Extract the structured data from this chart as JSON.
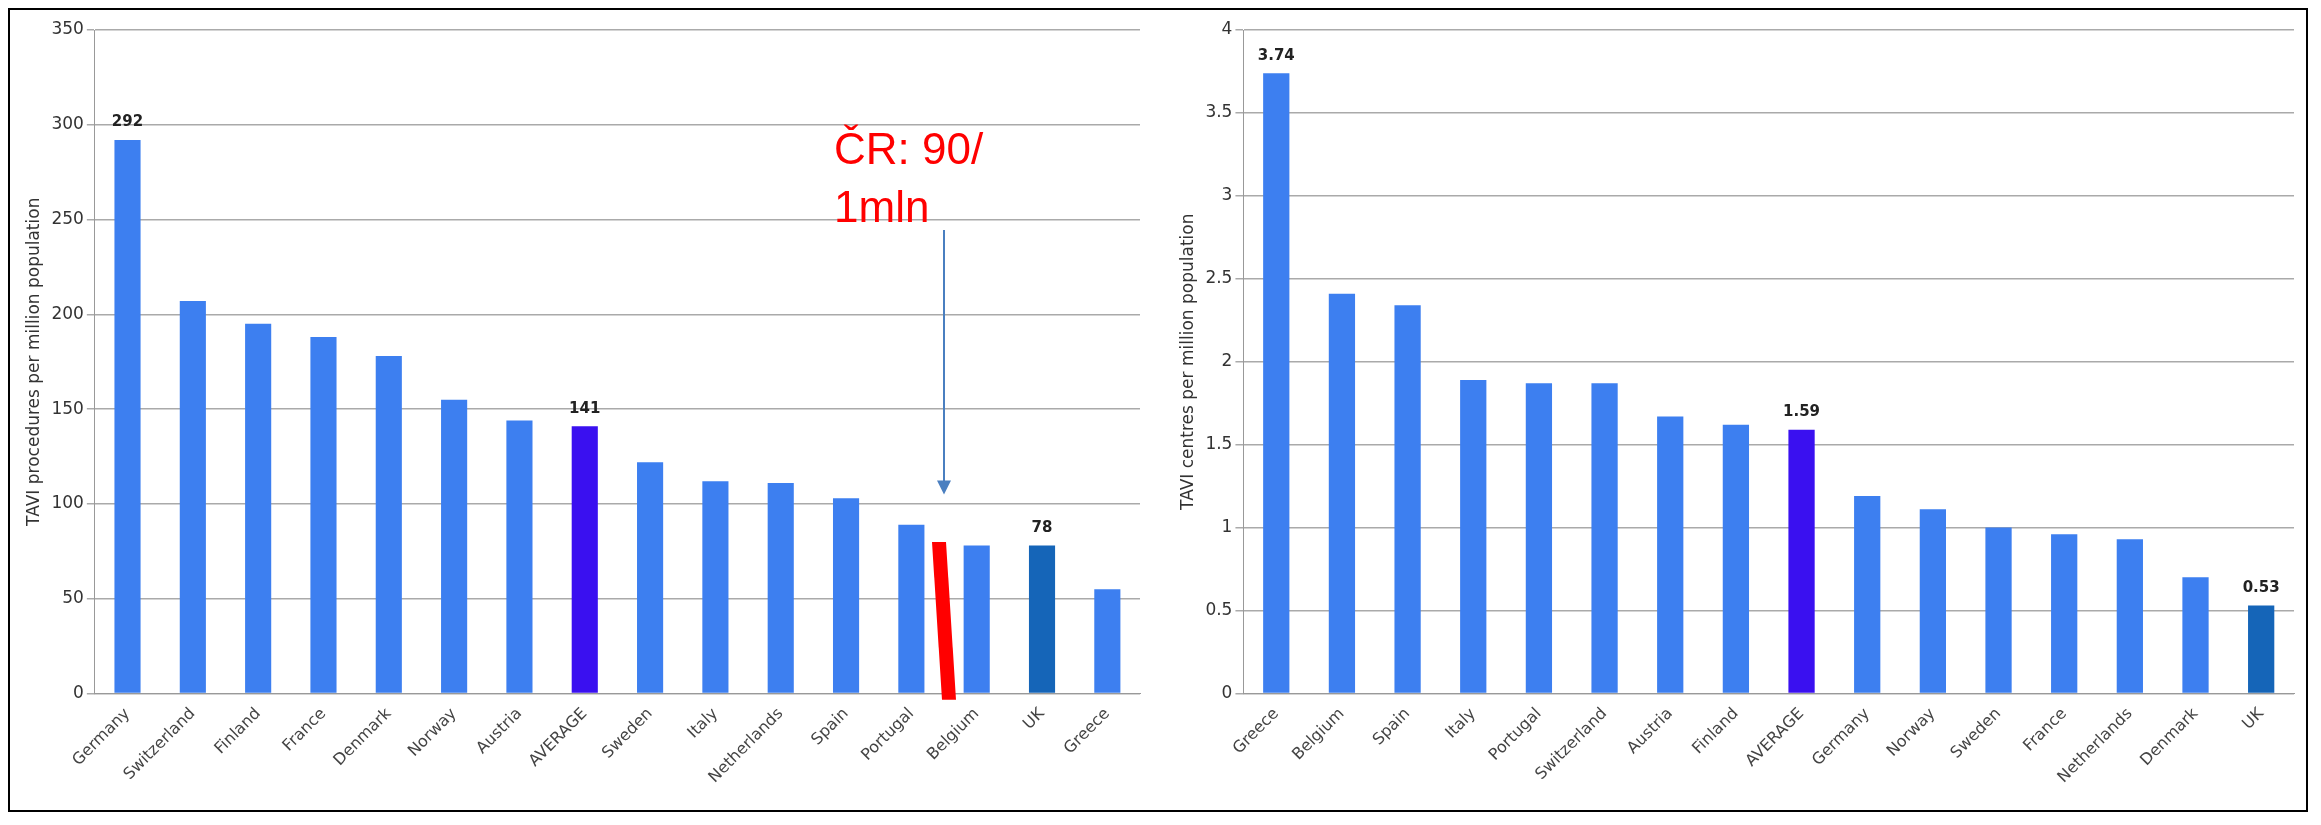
{
  "chart_data": [
    {
      "type": "bar",
      "ylabel": "TAVI procedures per million population",
      "categories": [
        "Germany",
        "Switzerland",
        "Finland",
        "France",
        "Denmark",
        "Norway",
        "Austria",
        "AVERAGE",
        "Sweden",
        "Italy",
        "Netherlands",
        "Spain",
        "Portugal",
        "Belgium",
        "UK",
        "Greece"
      ],
      "values": [
        292,
        207,
        195,
        188,
        178,
        155,
        144,
        141,
        122,
        112,
        111,
        103,
        89,
        78,
        78,
        55
      ],
      "colors": [
        "#3d7ff0",
        "#3d7ff0",
        "#3d7ff0",
        "#3d7ff0",
        "#3d7ff0",
        "#3d7ff0",
        "#3d7ff0",
        "#3a10f0",
        "#3d7ff0",
        "#3d7ff0",
        "#3d7ff0",
        "#3d7ff0",
        "#3d7ff0",
        "#3d7ff0",
        "#1565b8",
        "#3d7ff0"
      ],
      "value_labels": [
        "292",
        null,
        null,
        null,
        null,
        null,
        null,
        "141",
        null,
        null,
        null,
        null,
        null,
        null,
        "78",
        null
      ],
      "ylim": [
        0,
        350
      ],
      "yticks": [
        0,
        50,
        100,
        150,
        200,
        250,
        300,
        350
      ],
      "grid": "y",
      "annotations": [
        "ČR: 90/ 1mln"
      ]
    },
    {
      "type": "bar",
      "ylabel": "TAVI centres per million population",
      "categories": [
        "Greece",
        "Belgium",
        "Spain",
        "Italy",
        "Portugal",
        "Switzerland",
        "Austria",
        "Finland",
        "AVERAGE",
        "Germany",
        "Norway",
        "Sweden",
        "France",
        "Netherlands",
        "Denmark",
        "UK"
      ],
      "values": [
        3.74,
        2.41,
        2.34,
        1.89,
        1.87,
        1.87,
        1.67,
        1.62,
        1.59,
        1.19,
        1.11,
        1.0,
        0.96,
        0.93,
        0.7,
        0.53
      ],
      "colors": [
        "#3d7ff0",
        "#3d7ff0",
        "#3d7ff0",
        "#3d7ff0",
        "#3d7ff0",
        "#3d7ff0",
        "#3d7ff0",
        "#3d7ff0",
        "#3a10f0",
        "#3d7ff0",
        "#3d7ff0",
        "#3d7ff0",
        "#3d7ff0",
        "#3d7ff0",
        "#3d7ff0",
        "#1565b8"
      ],
      "value_labels": [
        "3.74",
        null,
        null,
        null,
        null,
        null,
        null,
        null,
        "1.59",
        null,
        null,
        null,
        null,
        null,
        null,
        "0.53"
      ],
      "ylim": [
        0,
        4
      ],
      "yticks": [
        0,
        0.5,
        1,
        1.5,
        2,
        2.5,
        3,
        3.5,
        4
      ],
      "grid": "y"
    }
  ]
}
